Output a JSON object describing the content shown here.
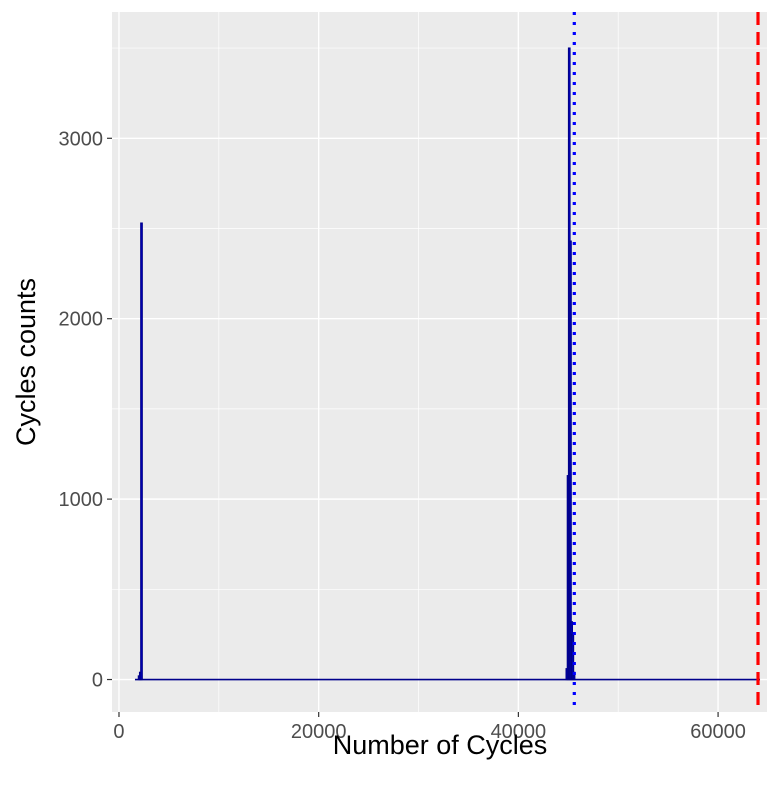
{
  "chart_data": {
    "type": "bar",
    "title": "",
    "xlabel": "Number of Cycles",
    "ylabel": "Cycles counts",
    "xlim": [
      -700,
      64900
    ],
    "ylim": [
      -180,
      3700
    ],
    "x_ticks": [
      0,
      20000,
      40000,
      60000
    ],
    "y_ticks": [
      0,
      1000,
      2000,
      3000
    ],
    "x_tick_labels": [
      "0",
      "20000",
      "40000",
      "60000"
    ],
    "y_tick_labels": [
      "0",
      "1000",
      "2000",
      "3000"
    ],
    "grid": true,
    "bin_width": 120,
    "baseline_x_range": [
      1600,
      64200
    ],
    "bins": [
      {
        "x": 2000,
        "count": 20
      },
      {
        "x": 2120,
        "count": 40
      },
      {
        "x": 2240,
        "count": 2530
      },
      {
        "x": 44840,
        "count": 60
      },
      {
        "x": 44960,
        "count": 1130
      },
      {
        "x": 45080,
        "count": 3500
      },
      {
        "x": 45200,
        "count": 2430
      },
      {
        "x": 45320,
        "count": 320
      },
      {
        "x": 45440,
        "count": 250
      },
      {
        "x": 45560,
        "count": 40
      }
    ],
    "reference_lines": [
      {
        "x": 45600,
        "color": "#0000ff",
        "style": "dotted"
      },
      {
        "x": 64000,
        "color": "#ff0000",
        "style": "dashed"
      }
    ],
    "colors": {
      "panel_background": "#ebebeb",
      "grid_major": "#ffffff",
      "bar_outline": "#00008b",
      "bar_fill": "#0000ff"
    }
  }
}
